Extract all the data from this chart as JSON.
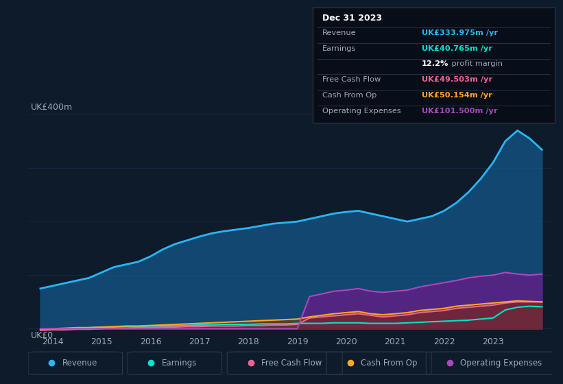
{
  "bg_color": "#0d1b2a",
  "plot_bg_color": "#0d1b2a",
  "years": [
    2013.75,
    2014,
    2014.25,
    2014.5,
    2014.75,
    2015,
    2015.25,
    2015.5,
    2015.75,
    2016,
    2016.25,
    2016.5,
    2016.75,
    2017,
    2017.25,
    2017.5,
    2017.75,
    2018,
    2018.25,
    2018.5,
    2018.75,
    2019,
    2019.25,
    2019.5,
    2019.75,
    2020,
    2020.25,
    2020.5,
    2020.75,
    2021,
    2021.25,
    2021.5,
    2021.75,
    2022,
    2022.25,
    2022.5,
    2022.75,
    2023,
    2023.25,
    2023.5,
    2023.75,
    2024
  ],
  "revenue": [
    75,
    80,
    85,
    90,
    95,
    105,
    115,
    120,
    125,
    135,
    148,
    158,
    165,
    172,
    178,
    182,
    185,
    188,
    192,
    196,
    198,
    200,
    205,
    210,
    215,
    218,
    220,
    215,
    210,
    205,
    200,
    205,
    210,
    220,
    235,
    255,
    280,
    310,
    350,
    370,
    355,
    334
  ],
  "earnings": [
    -2,
    -1,
    0,
    1,
    2,
    3,
    3,
    4,
    4,
    5,
    5,
    6,
    6,
    7,
    7,
    8,
    8,
    8,
    9,
    9,
    9,
    10,
    10,
    10,
    11,
    11,
    11,
    10,
    10,
    10,
    11,
    12,
    13,
    14,
    15,
    16,
    18,
    20,
    35,
    40,
    42,
    41
  ],
  "free_cash_flow": [
    -3,
    -2,
    -2,
    -1,
    -1,
    0,
    1,
    1,
    2,
    2,
    3,
    3,
    4,
    4,
    5,
    5,
    5,
    6,
    6,
    7,
    7,
    8,
    20,
    22,
    24,
    26,
    28,
    25,
    22,
    24,
    26,
    30,
    32,
    34,
    38,
    40,
    42,
    44,
    48,
    50,
    50,
    50
  ],
  "cash_from_op": [
    -1,
    0,
    1,
    2,
    2,
    3,
    4,
    5,
    5,
    6,
    7,
    8,
    9,
    10,
    11,
    12,
    13,
    14,
    15,
    16,
    17,
    18,
    22,
    25,
    28,
    30,
    32,
    28,
    26,
    28,
    30,
    34,
    36,
    38,
    42,
    44,
    46,
    48,
    50,
    52,
    51,
    50
  ],
  "operating_expenses": [
    0,
    0,
    0,
    0,
    0,
    0,
    0,
    0,
    0,
    0,
    0,
    0,
    0,
    0,
    0,
    0,
    0,
    0,
    0,
    0,
    0,
    0,
    60,
    65,
    70,
    72,
    75,
    70,
    68,
    70,
    72,
    78,
    82,
    86,
    90,
    95,
    98,
    100,
    105,
    102,
    100,
    102
  ],
  "revenue_color": "#29b6f6",
  "earnings_color": "#00e5cc",
  "free_cash_flow_color": "#f06292",
  "cash_from_op_color": "#ffa726",
  "operating_expenses_color": "#ab47bc",
  "revenue_fill": "#1565a0",
  "earnings_fill": "#006655",
  "operating_expenses_fill": "#6a1a8a",
  "grid_color": "#1e3050",
  "text_color": "#a0aab8",
  "ylabel_text": "UK£400m",
  "y0_text": "UK£0",
  "ylim": [
    -10,
    420
  ],
  "xlim": [
    2013.5,
    2024.2
  ],
  "xticks": [
    2014,
    2015,
    2016,
    2017,
    2018,
    2019,
    2020,
    2021,
    2022,
    2023
  ],
  "info_box": {
    "title": "Dec 31 2023",
    "rows": [
      {
        "label": "Revenue",
        "value": "UK£333.975m /yr",
        "value_color": "#29b6f6"
      },
      {
        "label": "Earnings",
        "value": "UK£40.765m /yr",
        "value_color": "#00e5cc"
      },
      {
        "label": "",
        "value": "12.2% profit margin",
        "value_color": "#ffffff"
      },
      {
        "label": "Free Cash Flow",
        "value": "UK£49.503m /yr",
        "value_color": "#f06292"
      },
      {
        "label": "Cash From Op",
        "value": "UK£50.154m /yr",
        "value_color": "#ffa726"
      },
      {
        "label": "Operating Expenses",
        "value": "UK£101.500m /yr",
        "value_color": "#ab47bc"
      }
    ]
  },
  "legend_items": [
    {
      "label": "Revenue",
      "color": "#29b6f6"
    },
    {
      "label": "Earnings",
      "color": "#00e5cc"
    },
    {
      "label": "Free Cash Flow",
      "color": "#f06292"
    },
    {
      "label": "Cash From Op",
      "color": "#ffa726"
    },
    {
      "label": "Operating Expenses",
      "color": "#ab47bc"
    }
  ]
}
